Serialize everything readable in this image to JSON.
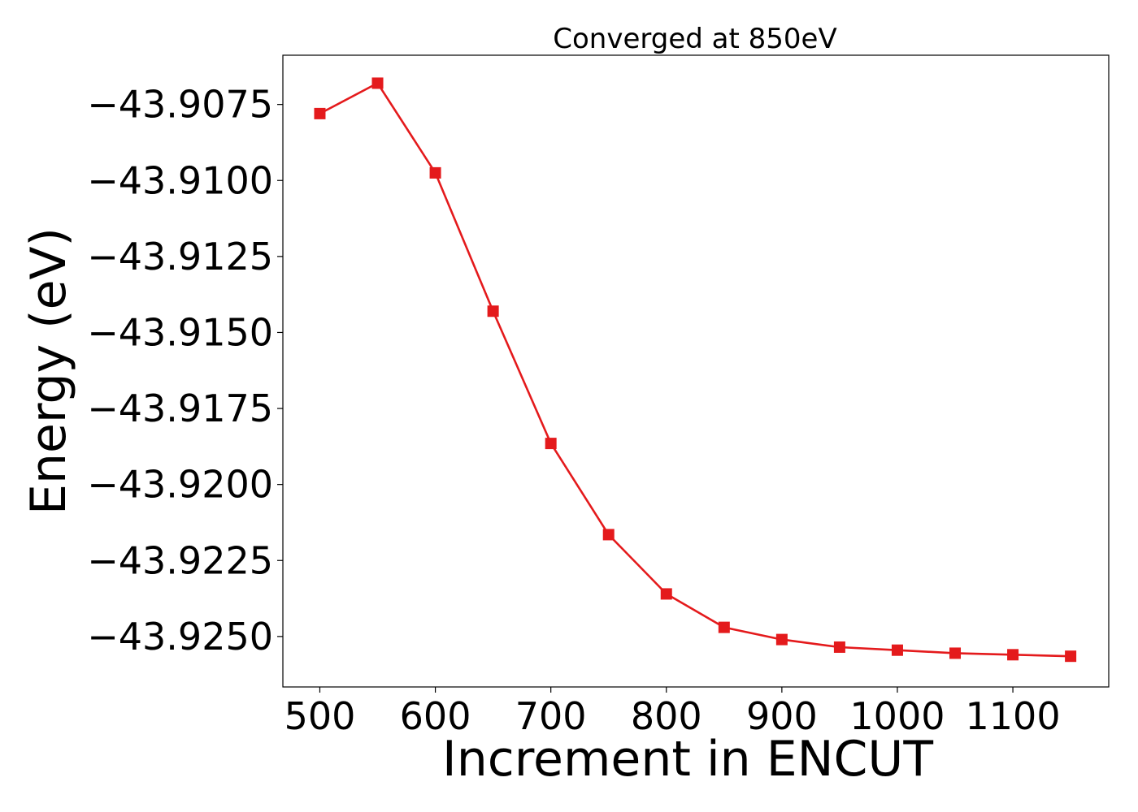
{
  "chart_data": {
    "type": "line",
    "title": "Converged at 850eV",
    "xlabel": "Increment in ENCUT",
    "ylabel": "Energy (eV)",
    "x": [
      500,
      550,
      600,
      650,
      700,
      750,
      800,
      850,
      900,
      950,
      1000,
      1050,
      1100,
      1150
    ],
    "series": [
      {
        "values": [
          -43.9078,
          -43.9068,
          -43.90975,
          -43.9143,
          -43.91865,
          -43.92165,
          -43.9236,
          -43.9247,
          -43.9251,
          -43.92535,
          -43.92545,
          -43.92555,
          -43.9256,
          -43.92565
        ],
        "color": "#e41a1c",
        "marker": "square"
      }
    ],
    "xticks": [
      500,
      600,
      700,
      800,
      900,
      1000,
      1100
    ],
    "xtick_labels": [
      "500",
      "600",
      "700",
      "800",
      "900",
      "1000",
      "1100"
    ],
    "yticks": [
      -43.9075,
      -43.91,
      -43.9125,
      -43.915,
      -43.9175,
      -43.92,
      -43.9225,
      -43.925
    ],
    "ytick_labels": [
      "−43.9075",
      "−43.9100",
      "−43.9125",
      "−43.9150",
      "−43.9175",
      "−43.9200",
      "−43.9225",
      "−43.9250"
    ],
    "xlim": [
      468,
      1183
    ],
    "ylim": [
      -43.92666,
      -43.90588
    ],
    "grid": false,
    "legend": "none"
  }
}
